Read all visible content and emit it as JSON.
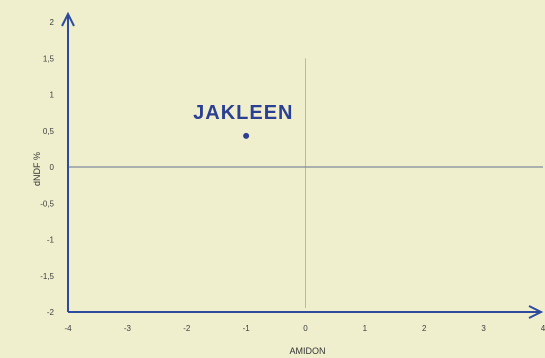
{
  "chart_data": {
    "type": "scatter",
    "xlabel": "AMIDON",
    "ylabel": "dNDF %",
    "xlim": [
      -4,
      4
    ],
    "ylim": [
      -2,
      2
    ],
    "x_ticks": [
      -4,
      -3,
      -2,
      -1,
      0,
      1,
      2,
      3,
      4
    ],
    "y_ticks": [
      {
        "value": 2,
        "label": "2"
      },
      {
        "value": 1.5,
        "label": "1,5"
      },
      {
        "value": 1,
        "label": "1"
      },
      {
        "value": 0.5,
        "label": "0,5"
      },
      {
        "value": 0,
        "label": "0"
      },
      {
        "value": -0.5,
        "label": "-0,5"
      },
      {
        "value": -1,
        "label": "-1"
      },
      {
        "value": -1.5,
        "label": "-1,5"
      },
      {
        "value": -2,
        "label": "-2"
      }
    ],
    "grid": false,
    "points": [
      {
        "label": "JAKLEEN",
        "x": -1,
        "y": 0.43
      }
    ]
  },
  "colors": {
    "background": "#f0efcd",
    "axis": "#2e4a9e",
    "point": "#2b3f94",
    "crosshair_vertical": "#b9b9a4",
    "crosshair_horizontal": "#7f8a9a"
  }
}
